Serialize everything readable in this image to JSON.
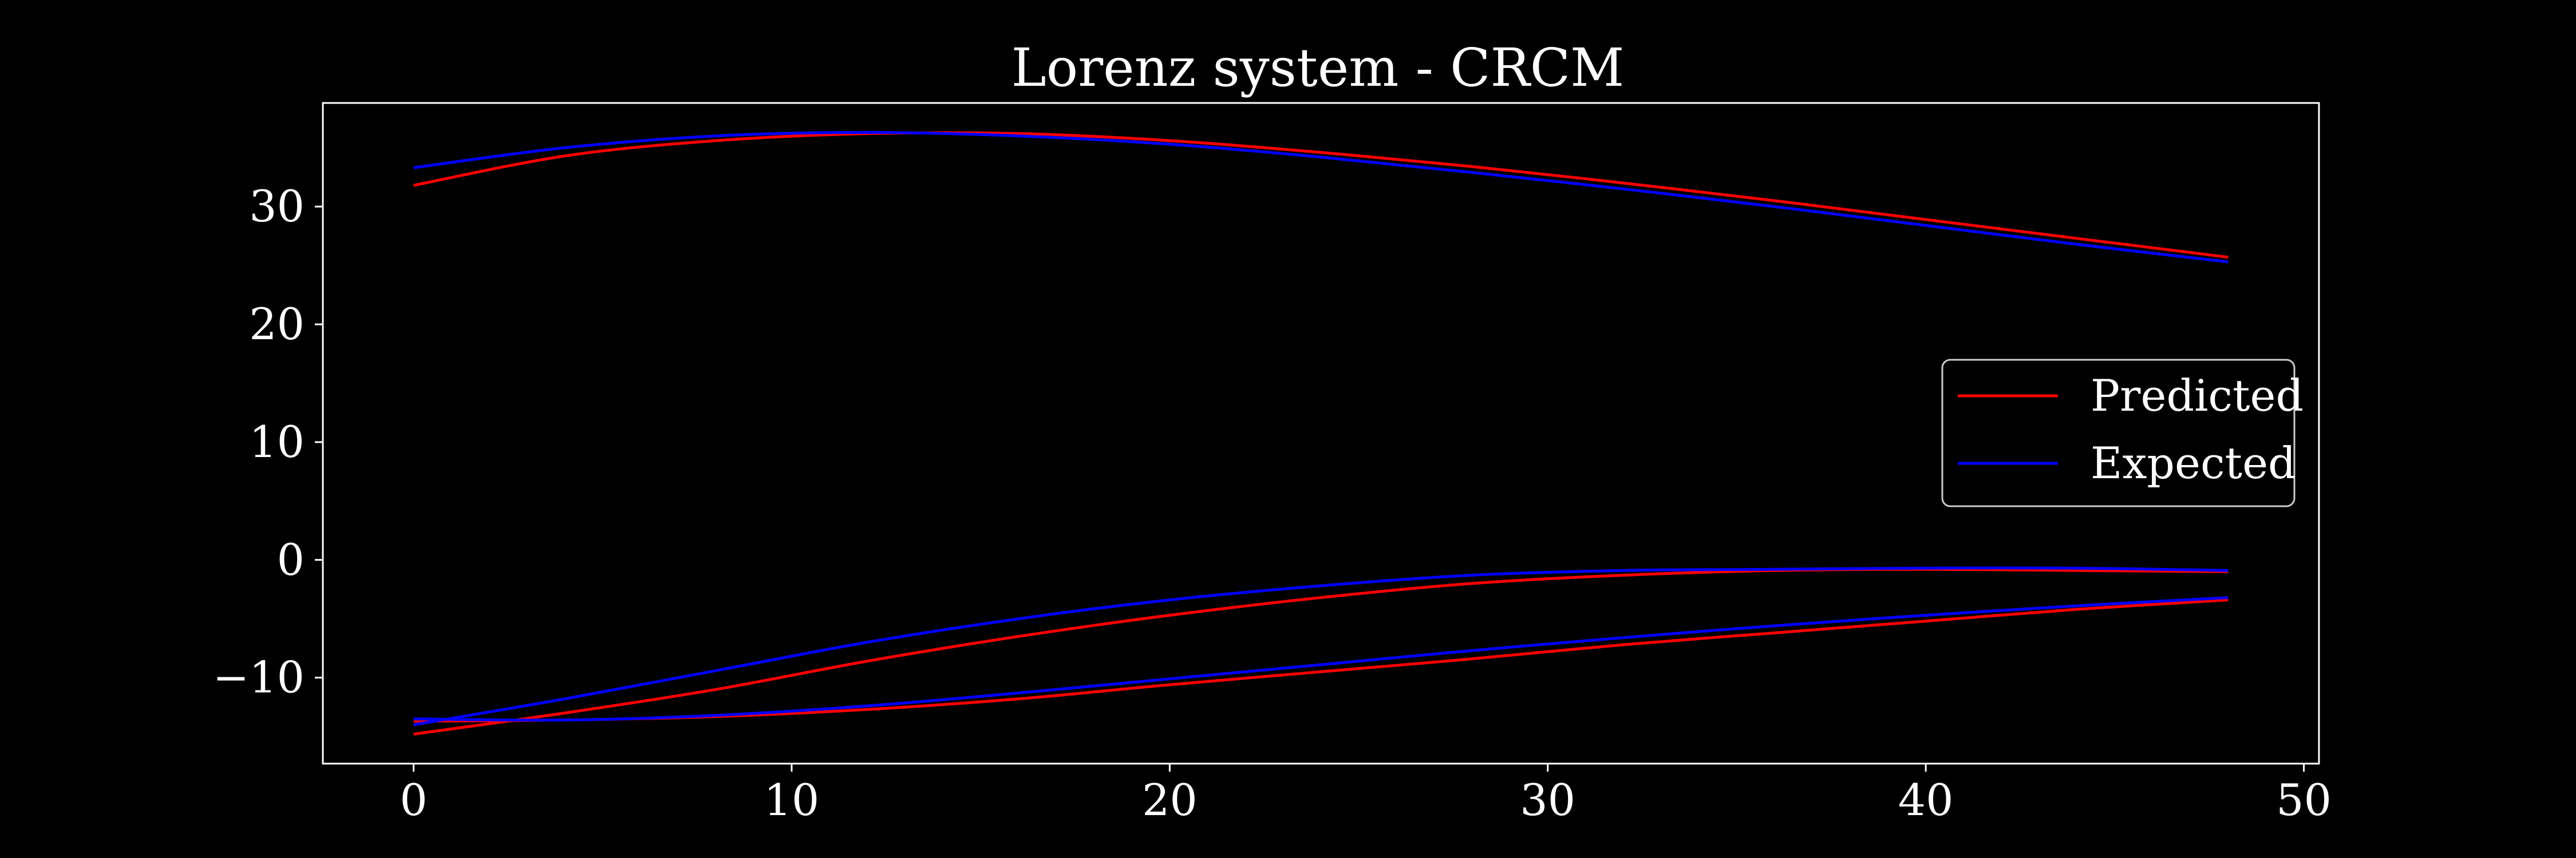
{
  "chart_data": {
    "type": "line",
    "title": "Lorenz system - CRCM",
    "xlabel": "",
    "ylabel": "",
    "xlim": [
      -2.4,
      50.4
    ],
    "ylim": [
      -17.3,
      38.8
    ],
    "xticks": [
      0,
      10,
      20,
      30,
      40,
      50
    ],
    "yticks": [
      -10,
      0,
      10,
      20,
      30
    ],
    "ytick_labels": [
      "−10",
      "0",
      "10",
      "20",
      "30"
    ],
    "grid": false,
    "legend_position": "center-right",
    "legend": [
      {
        "label": "Predicted",
        "color": "#ff0000"
      },
      {
        "label": "Expected",
        "color": "#0000ff"
      }
    ],
    "x": [
      0,
      4,
      8,
      12,
      16,
      20,
      24,
      28,
      32,
      36,
      40,
      44,
      48
    ],
    "series": [
      {
        "group": "Predicted",
        "variable": "x",
        "color": "#ff0000",
        "values": [
          -13.7,
          -13.6,
          -13.3,
          -12.7,
          -11.8,
          -10.6,
          -9.5,
          -8.4,
          -7.2,
          -6.2,
          -5.2,
          -4.2,
          -3.4
        ]
      },
      {
        "group": "Predicted",
        "variable": "y",
        "color": "#ff0000",
        "values": [
          -14.8,
          -13.0,
          -11.0,
          -8.6,
          -6.5,
          -4.7,
          -3.2,
          -2.0,
          -1.3,
          -0.9,
          -0.8,
          -0.9,
          -1.0
        ]
      },
      {
        "group": "Predicted",
        "variable": "z",
        "color": "#ff0000",
        "values": [
          31.8,
          34.3,
          35.6,
          36.2,
          36.2,
          35.6,
          34.6,
          33.4,
          32.0,
          30.5,
          28.9,
          27.3,
          25.7
        ]
      },
      {
        "group": "Expected",
        "variable": "x",
        "color": "#0000ff",
        "values": [
          -13.5,
          -13.6,
          -13.2,
          -12.4,
          -11.3,
          -10.1,
          -8.9,
          -7.7,
          -6.6,
          -5.6,
          -4.7,
          -3.9,
          -3.2
        ]
      },
      {
        "group": "Expected",
        "variable": "y",
        "color": "#0000ff",
        "values": [
          -14.0,
          -11.8,
          -9.4,
          -7.0,
          -5.0,
          -3.4,
          -2.2,
          -1.3,
          -0.9,
          -0.8,
          -0.7,
          -0.7,
          -0.9
        ]
      },
      {
        "group": "Expected",
        "variable": "z",
        "color": "#0000ff",
        "values": [
          33.3,
          35.0,
          36.0,
          36.3,
          36.0,
          35.3,
          34.2,
          32.9,
          31.5,
          30.0,
          28.4,
          26.8,
          25.3
        ]
      }
    ]
  }
}
